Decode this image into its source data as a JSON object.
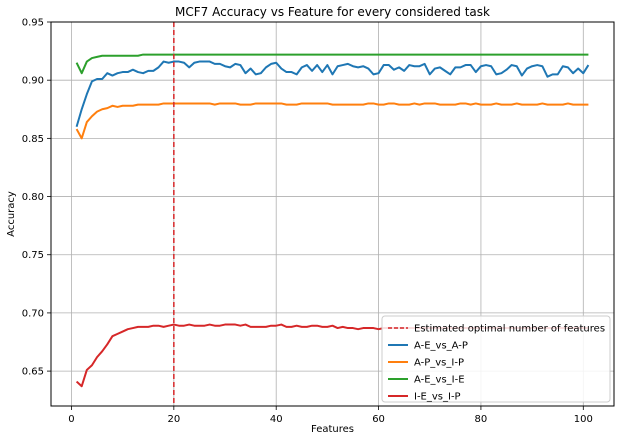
{
  "chart_data": {
    "type": "line",
    "title": "MCF7 Accuracy vs Feature for every considered task",
    "xlabel": "Features",
    "ylabel": "Accuracy",
    "xlim": [
      -4,
      106
    ],
    "ylim": [
      0.62,
      0.95
    ],
    "xticks": [
      0,
      20,
      40,
      60,
      80,
      100
    ],
    "yticks": [
      0.65,
      0.7,
      0.75,
      0.8,
      0.85,
      0.9,
      0.95
    ],
    "xtick_labels": [
      "0",
      "20",
      "40",
      "60",
      "80",
      "100"
    ],
    "ytick_labels": [
      "0.65",
      "0.70",
      "0.75",
      "0.80",
      "0.85",
      "0.90",
      "0.95"
    ],
    "grid": true,
    "legend_position": "lower-right",
    "vline": {
      "x": 20,
      "label": "Estimated optimal number of features",
      "color": "#d62728",
      "style": "dashed"
    },
    "x": [
      1,
      2,
      3,
      4,
      5,
      6,
      7,
      8,
      9,
      10,
      11,
      12,
      13,
      14,
      15,
      16,
      17,
      18,
      19,
      20,
      21,
      22,
      23,
      24,
      25,
      26,
      27,
      28,
      29,
      30,
      31,
      32,
      33,
      34,
      35,
      36,
      37,
      38,
      39,
      40,
      41,
      42,
      43,
      44,
      45,
      46,
      47,
      48,
      49,
      50,
      51,
      52,
      53,
      54,
      55,
      56,
      57,
      58,
      59,
      60,
      61,
      62,
      63,
      64,
      65,
      66,
      67,
      68,
      69,
      70,
      71,
      72,
      73,
      74,
      75,
      76,
      77,
      78,
      79,
      80,
      81,
      82,
      83,
      84,
      85,
      86,
      87,
      88,
      89,
      90,
      91,
      92,
      93,
      94,
      95,
      96,
      97,
      98,
      99,
      100,
      101
    ],
    "series": [
      {
        "name": "A-E_vs_A-P",
        "color": "#1f77b4",
        "values": [
          0.86,
          0.875,
          0.888,
          0.899,
          0.901,
          0.901,
          0.906,
          0.904,
          0.906,
          0.907,
          0.907,
          0.909,
          0.907,
          0.906,
          0.908,
          0.908,
          0.911,
          0.916,
          0.915,
          0.916,
          0.916,
          0.915,
          0.911,
          0.915,
          0.916,
          0.916,
          0.916,
          0.914,
          0.914,
          0.912,
          0.911,
          0.914,
          0.913,
          0.906,
          0.91,
          0.905,
          0.906,
          0.911,
          0.914,
          0.915,
          0.91,
          0.907,
          0.907,
          0.905,
          0.911,
          0.913,
          0.908,
          0.913,
          0.907,
          0.913,
          0.905,
          0.912,
          0.913,
          0.914,
          0.912,
          0.911,
          0.912,
          0.91,
          0.905,
          0.906,
          0.913,
          0.913,
          0.909,
          0.911,
          0.908,
          0.913,
          0.912,
          0.912,
          0.914,
          0.905,
          0.91,
          0.911,
          0.908,
          0.905,
          0.911,
          0.911,
          0.913,
          0.913,
          0.907,
          0.912,
          0.913,
          0.912,
          0.905,
          0.906,
          0.909,
          0.913,
          0.912,
          0.904,
          0.91,
          0.912,
          0.913,
          0.912,
          0.903,
          0.905,
          0.905,
          0.912,
          0.911,
          0.906,
          0.91,
          0.906,
          0.913
        ]
      },
      {
        "name": "A-P_vs_I-P",
        "color": "#ff7f0e",
        "values": [
          0.858,
          0.85,
          0.864,
          0.869,
          0.873,
          0.875,
          0.876,
          0.878,
          0.877,
          0.878,
          0.878,
          0.878,
          0.879,
          0.879,
          0.879,
          0.879,
          0.879,
          0.88,
          0.88,
          0.88,
          0.88,
          0.88,
          0.88,
          0.88,
          0.88,
          0.88,
          0.88,
          0.879,
          0.88,
          0.88,
          0.88,
          0.88,
          0.879,
          0.879,
          0.879,
          0.88,
          0.88,
          0.88,
          0.88,
          0.88,
          0.88,
          0.879,
          0.879,
          0.879,
          0.88,
          0.88,
          0.88,
          0.88,
          0.88,
          0.88,
          0.879,
          0.879,
          0.879,
          0.879,
          0.879,
          0.879,
          0.879,
          0.88,
          0.88,
          0.879,
          0.879,
          0.88,
          0.88,
          0.879,
          0.879,
          0.879,
          0.88,
          0.879,
          0.88,
          0.88,
          0.88,
          0.879,
          0.879,
          0.879,
          0.879,
          0.88,
          0.88,
          0.879,
          0.88,
          0.879,
          0.879,
          0.879,
          0.88,
          0.879,
          0.879,
          0.879,
          0.88,
          0.879,
          0.879,
          0.879,
          0.879,
          0.88,
          0.879,
          0.879,
          0.879,
          0.879,
          0.88,
          0.879,
          0.879,
          0.879,
          0.879
        ]
      },
      {
        "name": "A-E_vs_I-E",
        "color": "#2ca02c",
        "values": [
          0.915,
          0.906,
          0.916,
          0.919,
          0.92,
          0.921,
          0.921,
          0.921,
          0.921,
          0.921,
          0.921,
          0.921,
          0.921,
          0.922,
          0.922,
          0.922,
          0.922,
          0.922,
          0.922,
          0.922,
          0.922,
          0.922,
          0.922,
          0.922,
          0.922,
          0.922,
          0.922,
          0.922,
          0.922,
          0.922,
          0.922,
          0.922,
          0.922,
          0.922,
          0.922,
          0.922,
          0.922,
          0.922,
          0.922,
          0.922,
          0.922,
          0.922,
          0.922,
          0.922,
          0.922,
          0.922,
          0.922,
          0.922,
          0.922,
          0.922,
          0.922,
          0.922,
          0.922,
          0.922,
          0.922,
          0.922,
          0.922,
          0.922,
          0.922,
          0.922,
          0.922,
          0.922,
          0.922,
          0.922,
          0.922,
          0.922,
          0.922,
          0.922,
          0.922,
          0.922,
          0.922,
          0.922,
          0.922,
          0.922,
          0.922,
          0.922,
          0.922,
          0.922,
          0.922,
          0.922,
          0.922,
          0.922,
          0.922,
          0.922,
          0.922,
          0.922,
          0.922,
          0.922,
          0.922,
          0.922,
          0.922,
          0.922,
          0.922,
          0.922,
          0.922,
          0.922,
          0.922,
          0.922,
          0.922,
          0.922,
          0.922
        ]
      },
      {
        "name": "I-E_vs_I-P",
        "color": "#d62728",
        "values": [
          0.641,
          0.637,
          0.651,
          0.655,
          0.662,
          0.667,
          0.673,
          0.68,
          0.682,
          0.684,
          0.686,
          0.687,
          0.688,
          0.688,
          0.688,
          0.689,
          0.689,
          0.688,
          0.689,
          0.69,
          0.689,
          0.689,
          0.69,
          0.689,
          0.689,
          0.689,
          0.69,
          0.689,
          0.689,
          0.69,
          0.69,
          0.69,
          0.689,
          0.69,
          0.688,
          0.688,
          0.688,
          0.688,
          0.689,
          0.689,
          0.69,
          0.688,
          0.688,
          0.689,
          0.688,
          0.688,
          0.689,
          0.689,
          0.688,
          0.688,
          0.689,
          0.687,
          0.688,
          0.687,
          0.687,
          0.686,
          0.687,
          0.687,
          0.687,
          0.686,
          0.687,
          0.687,
          0.687,
          0.687,
          0.687,
          0.687,
          0.687,
          0.687,
          0.687,
          0.687,
          0.687,
          0.687,
          0.687,
          0.687,
          0.687,
          0.687,
          0.687,
          0.687,
          0.687,
          0.687,
          0.687,
          0.687,
          0.687,
          0.687,
          0.687,
          0.687,
          0.687,
          0.687,
          0.687,
          0.687,
          0.687,
          0.687,
          0.687,
          0.687,
          0.687,
          0.687,
          0.687,
          0.687,
          0.687,
          0.687,
          0.687
        ]
      }
    ]
  }
}
